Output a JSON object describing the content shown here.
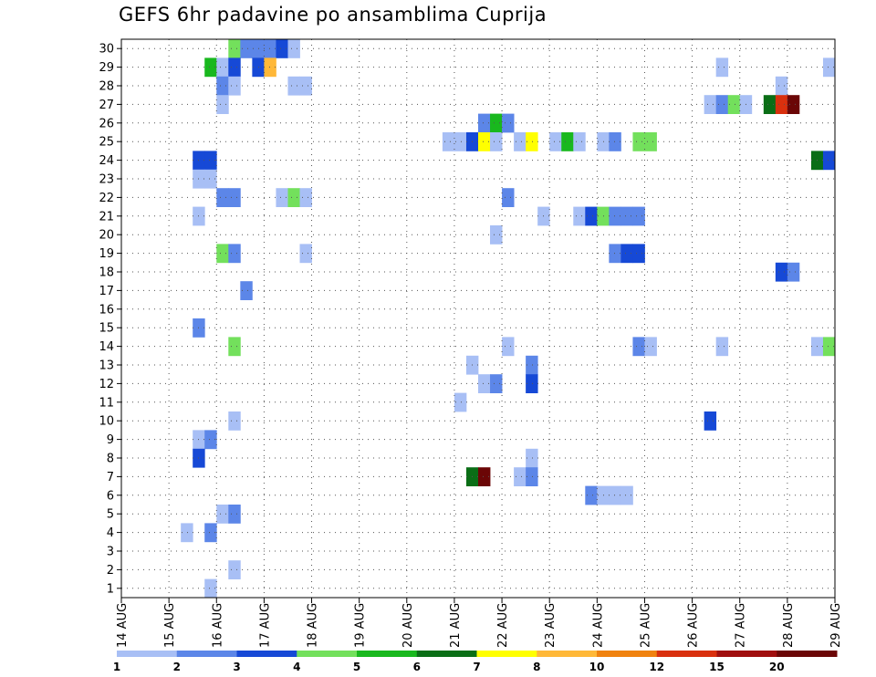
{
  "chart_data": {
    "type": "heatmap",
    "title": "GEFS 6hr padavine po ansamblima Cuprija",
    "xlabel": "",
    "ylabel": "",
    "x_tick_labels": [
      "14 AUG",
      "15 AUG",
      "16 AUG",
      "17 AUG",
      "18 AUG",
      "19 AUG",
      "20 AUG",
      "21 AUG",
      "22 AUG",
      "23 AUG",
      "24 AUG",
      "25 AUG",
      "26 AUG",
      "27 AUG",
      "28 AUG",
      "29 AUG"
    ],
    "xlim_days": [
      0,
      15
    ],
    "y_tick_labels": [
      "1",
      "2",
      "3",
      "4",
      "5",
      "6",
      "7",
      "8",
      "9",
      "10",
      "11",
      "12",
      "13",
      "14",
      "15",
      "16",
      "17",
      "18",
      "19",
      "20",
      "21",
      "22",
      "23",
      "24",
      "25",
      "26",
      "27",
      "28",
      "29",
      "30"
    ],
    "ylim": [
      0.5,
      30.5
    ],
    "grid": "dotted",
    "time_step_hours": 6,
    "colorbar": {
      "labels": [
        "1",
        "2",
        "3",
        "4",
        "5",
        "6",
        "7",
        "8",
        "10",
        "12",
        "15",
        "20"
      ],
      "colors": [
        "#a8bff5",
        "#5c86e8",
        "#1649d6",
        "#73e05c",
        "#19b81e",
        "#0a6e16",
        "#ffff00",
        "#ffb838",
        "#f0820f",
        "#d9300e",
        "#a00f0f",
        "#6b0606"
      ]
    },
    "cells": [
      {
        "member": 30,
        "step": 10,
        "color": "#73e05c"
      },
      {
        "member": 30,
        "step": 11,
        "color": "#5c86e8"
      },
      {
        "member": 30,
        "step": 12,
        "color": "#5c86e8"
      },
      {
        "member": 30,
        "step": 13,
        "color": "#5c86e8"
      },
      {
        "member": 30,
        "step": 14,
        "color": "#1649d6"
      },
      {
        "member": 30,
        "step": 15,
        "color": "#a8bff5"
      },
      {
        "member": 29,
        "step": 8,
        "color": "#19b81e"
      },
      {
        "member": 29,
        "step": 9,
        "color": "#a8bff5"
      },
      {
        "member": 29,
        "step": 10,
        "color": "#1649d6"
      },
      {
        "member": 29,
        "step": 12,
        "color": "#1649d6"
      },
      {
        "member": 29,
        "step": 13,
        "color": "#ffb838"
      },
      {
        "member": 29,
        "step": 51,
        "color": "#a8bff5"
      },
      {
        "member": 29,
        "step": 60,
        "color": "#a8bff5"
      },
      {
        "member": 28,
        "step": 9,
        "color": "#5c86e8"
      },
      {
        "member": 28,
        "step": 10,
        "color": "#a8bff5"
      },
      {
        "member": 28,
        "step": 15,
        "color": "#a8bff5"
      },
      {
        "member": 28,
        "step": 16,
        "color": "#a8bff5"
      },
      {
        "member": 28,
        "step": 56,
        "color": "#a8bff5"
      },
      {
        "member": 27,
        "step": 9,
        "color": "#a8bff5"
      },
      {
        "member": 27,
        "step": 50,
        "color": "#a8bff5"
      },
      {
        "member": 27,
        "step": 51,
        "color": "#5c86e8"
      },
      {
        "member": 27,
        "step": 52,
        "color": "#73e05c"
      },
      {
        "member": 27,
        "step": 53,
        "color": "#a8bff5"
      },
      {
        "member": 27,
        "step": 55,
        "color": "#0a6e16"
      },
      {
        "member": 27,
        "step": 56,
        "color": "#d9300e"
      },
      {
        "member": 27,
        "step": 57,
        "color": "#6b0606"
      },
      {
        "member": 26,
        "step": 31,
        "color": "#5c86e8"
      },
      {
        "member": 26,
        "step": 32,
        "color": "#19b81e"
      },
      {
        "member": 26,
        "step": 33,
        "color": "#5c86e8"
      },
      {
        "member": 25,
        "step": 28,
        "color": "#a8bff5"
      },
      {
        "member": 25,
        "step": 29,
        "color": "#a8bff5"
      },
      {
        "member": 25,
        "step": 30,
        "color": "#1649d6"
      },
      {
        "member": 25,
        "step": 31,
        "color": "#ffff00"
      },
      {
        "member": 25,
        "step": 32,
        "color": "#a8bff5"
      },
      {
        "member": 25,
        "step": 34,
        "color": "#a8bff5"
      },
      {
        "member": 25,
        "step": 35,
        "color": "#ffff00"
      },
      {
        "member": 25,
        "step": 37,
        "color": "#a8bff5"
      },
      {
        "member": 25,
        "step": 38,
        "color": "#19b81e"
      },
      {
        "member": 25,
        "step": 39,
        "color": "#a8bff5"
      },
      {
        "member": 25,
        "step": 41,
        "color": "#a8bff5"
      },
      {
        "member": 25,
        "step": 42,
        "color": "#5c86e8"
      },
      {
        "member": 25,
        "step": 44,
        "color": "#73e05c"
      },
      {
        "member": 25,
        "step": 45,
        "color": "#73e05c"
      },
      {
        "member": 24,
        "step": 7,
        "color": "#1649d6"
      },
      {
        "member": 24,
        "step": 8,
        "color": "#1649d6"
      },
      {
        "member": 24,
        "step": 59,
        "color": "#0a6e16"
      },
      {
        "member": 24,
        "step": 60,
        "color": "#1649d6"
      },
      {
        "member": 23,
        "step": 7,
        "color": "#a8bff5"
      },
      {
        "member": 23,
        "step": 8,
        "color": "#a8bff5"
      },
      {
        "member": 22,
        "step": 9,
        "color": "#5c86e8"
      },
      {
        "member": 22,
        "step": 10,
        "color": "#5c86e8"
      },
      {
        "member": 22,
        "step": 14,
        "color": "#a8bff5"
      },
      {
        "member": 22,
        "step": 15,
        "color": "#73e05c"
      },
      {
        "member": 22,
        "step": 16,
        "color": "#a8bff5"
      },
      {
        "member": 22,
        "step": 33,
        "color": "#5c86e8"
      },
      {
        "member": 21,
        "step": 7,
        "color": "#a8bff5"
      },
      {
        "member": 21,
        "step": 36,
        "color": "#a8bff5"
      },
      {
        "member": 21,
        "step": 39,
        "color": "#a8bff5"
      },
      {
        "member": 21,
        "step": 40,
        "color": "#1649d6"
      },
      {
        "member": 21,
        "step": 41,
        "color": "#73e05c"
      },
      {
        "member": 21,
        "step": 42,
        "color": "#5c86e8"
      },
      {
        "member": 21,
        "step": 43,
        "color": "#5c86e8"
      },
      {
        "member": 21,
        "step": 44,
        "color": "#5c86e8"
      },
      {
        "member": 20,
        "step": 32,
        "color": "#a8bff5"
      },
      {
        "member": 19,
        "step": 9,
        "color": "#73e05c"
      },
      {
        "member": 19,
        "step": 10,
        "color": "#5c86e8"
      },
      {
        "member": 19,
        "step": 16,
        "color": "#a8bff5"
      },
      {
        "member": 19,
        "step": 42,
        "color": "#5c86e8"
      },
      {
        "member": 19,
        "step": 43,
        "color": "#1649d6"
      },
      {
        "member": 19,
        "step": 44,
        "color": "#1649d6"
      },
      {
        "member": 18,
        "step": 56,
        "color": "#1649d6"
      },
      {
        "member": 18,
        "step": 57,
        "color": "#5c86e8"
      },
      {
        "member": 17,
        "step": 11,
        "color": "#5c86e8"
      },
      {
        "member": 15,
        "step": 7,
        "color": "#5c86e8"
      },
      {
        "member": 14,
        "step": 10,
        "color": "#73e05c"
      },
      {
        "member": 14,
        "step": 33,
        "color": "#a8bff5"
      },
      {
        "member": 14,
        "step": 44,
        "color": "#5c86e8"
      },
      {
        "member": 14,
        "step": 45,
        "color": "#a8bff5"
      },
      {
        "member": 14,
        "step": 51,
        "color": "#a8bff5"
      },
      {
        "member": 14,
        "step": 59,
        "color": "#a8bff5"
      },
      {
        "member": 14,
        "step": 60,
        "color": "#73e05c"
      },
      {
        "member": 13,
        "step": 30,
        "color": "#a8bff5"
      },
      {
        "member": 13,
        "step": 35,
        "color": "#5c86e8"
      },
      {
        "member": 12,
        "step": 31,
        "color": "#a8bff5"
      },
      {
        "member": 12,
        "step": 32,
        "color": "#5c86e8"
      },
      {
        "member": 12,
        "step": 35,
        "color": "#1649d6"
      },
      {
        "member": 11,
        "step": 29,
        "color": "#a8bff5"
      },
      {
        "member": 10,
        "step": 10,
        "color": "#a8bff5"
      },
      {
        "member": 10,
        "step": 50,
        "color": "#1649d6"
      },
      {
        "member": 9,
        "step": 7,
        "color": "#a8bff5"
      },
      {
        "member": 9,
        "step": 8,
        "color": "#5c86e8"
      },
      {
        "member": 8,
        "step": 7,
        "color": "#1649d6"
      },
      {
        "member": 8,
        "step": 35,
        "color": "#a8bff5"
      },
      {
        "member": 7,
        "step": 30,
        "color": "#0a6e16"
      },
      {
        "member": 7,
        "step": 31,
        "color": "#6b0606"
      },
      {
        "member": 7,
        "step": 34,
        "color": "#a8bff5"
      },
      {
        "member": 7,
        "step": 35,
        "color": "#5c86e8"
      },
      {
        "member": 6,
        "step": 40,
        "color": "#5c86e8"
      },
      {
        "member": 6,
        "step": 41,
        "color": "#a8bff5"
      },
      {
        "member": 6,
        "step": 42,
        "color": "#a8bff5"
      },
      {
        "member": 6,
        "step": 43,
        "color": "#a8bff5"
      },
      {
        "member": 5,
        "step": 9,
        "color": "#a8bff5"
      },
      {
        "member": 5,
        "step": 10,
        "color": "#5c86e8"
      },
      {
        "member": 4,
        "step": 6,
        "color": "#a8bff5"
      },
      {
        "member": 4,
        "step": 8,
        "color": "#5c86e8"
      },
      {
        "member": 2,
        "step": 10,
        "color": "#a8bff5"
      },
      {
        "member": 1,
        "step": 8,
        "color": "#a8bff5"
      }
    ]
  }
}
